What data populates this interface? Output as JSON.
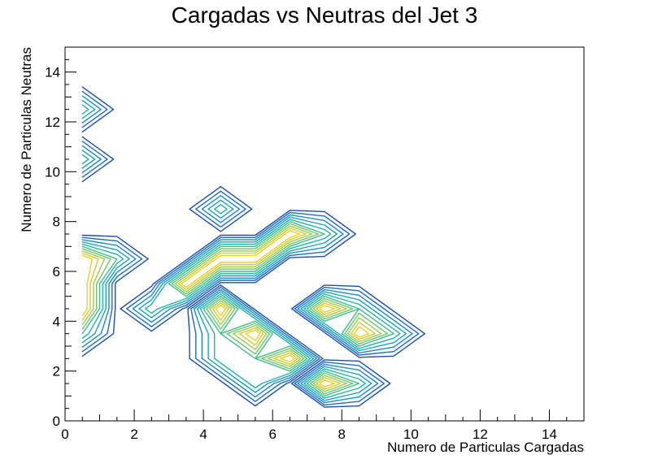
{
  "chart_data": {
    "type": "contour",
    "title": "Cargadas vs Neutras del Jet 3",
    "xlabel": "Numero de Particulas Cargadas",
    "ylabel": "Numero de Particulas Neutras",
    "xlim": [
      0,
      15
    ],
    "ylim": [
      0,
      15
    ],
    "x_ticks": [
      0,
      2,
      4,
      6,
      8,
      10,
      12,
      14
    ],
    "y_ticks": [
      0,
      2,
      4,
      6,
      8,
      10,
      12,
      14
    ],
    "grid": false,
    "colors": [
      "#1a4fb0",
      "#1d6cc2",
      "#1b8ac6",
      "#1aa3bd",
      "#22b3a6",
      "#3fbd8c",
      "#6cc46e",
      "#a1c94f",
      "#cfcb33",
      "#f2cf1e"
    ],
    "cells": [
      {
        "x": 0.5,
        "y": 12.5,
        "value": 1
      },
      {
        "x": 0.5,
        "y": 10.5,
        "value": 1
      },
      {
        "x": 4.5,
        "y": 8.5,
        "value": 1
      },
      {
        "x": 0.5,
        "y": 6.5,
        "value": 2
      },
      {
        "x": 0.5,
        "y": 5.5,
        "value": 2
      },
      {
        "x": 0.5,
        "y": 4.5,
        "value": 2
      },
      {
        "x": 0.5,
        "y": 3.5,
        "value": 1
      },
      {
        "x": 1.5,
        "y": 6.5,
        "value": 1
      },
      {
        "x": 2.5,
        "y": 4.5,
        "value": 1
      },
      {
        "x": 3.5,
        "y": 5.5,
        "value": 2
      },
      {
        "x": 4.5,
        "y": 6.5,
        "value": 2
      },
      {
        "x": 5.5,
        "y": 6.5,
        "value": 2
      },
      {
        "x": 6.5,
        "y": 7.5,
        "value": 2
      },
      {
        "x": 7.5,
        "y": 7.5,
        "value": 1
      },
      {
        "x": 4.5,
        "y": 4.5,
        "value": 2
      },
      {
        "x": 5.5,
        "y": 3.5,
        "value": 2
      },
      {
        "x": 6.5,
        "y": 2.5,
        "value": 2
      },
      {
        "x": 7.5,
        "y": 1.5,
        "value": 2
      },
      {
        "x": 4.5,
        "y": 3.5,
        "value": 1
      },
      {
        "x": 4.5,
        "y": 2.5,
        "value": 1
      },
      {
        "x": 5.5,
        "y": 2.5,
        "value": 1
      },
      {
        "x": 5.5,
        "y": 1.5,
        "value": 1
      },
      {
        "x": 8.5,
        "y": 4.5,
        "value": 1
      },
      {
        "x": 7.5,
        "y": 4.5,
        "value": 2
      },
      {
        "x": 8.5,
        "y": 3.5,
        "value": 2
      },
      {
        "x": 9.5,
        "y": 3.5,
        "value": 1
      },
      {
        "x": 8.5,
        "y": 1.5,
        "value": 1
      }
    ]
  }
}
